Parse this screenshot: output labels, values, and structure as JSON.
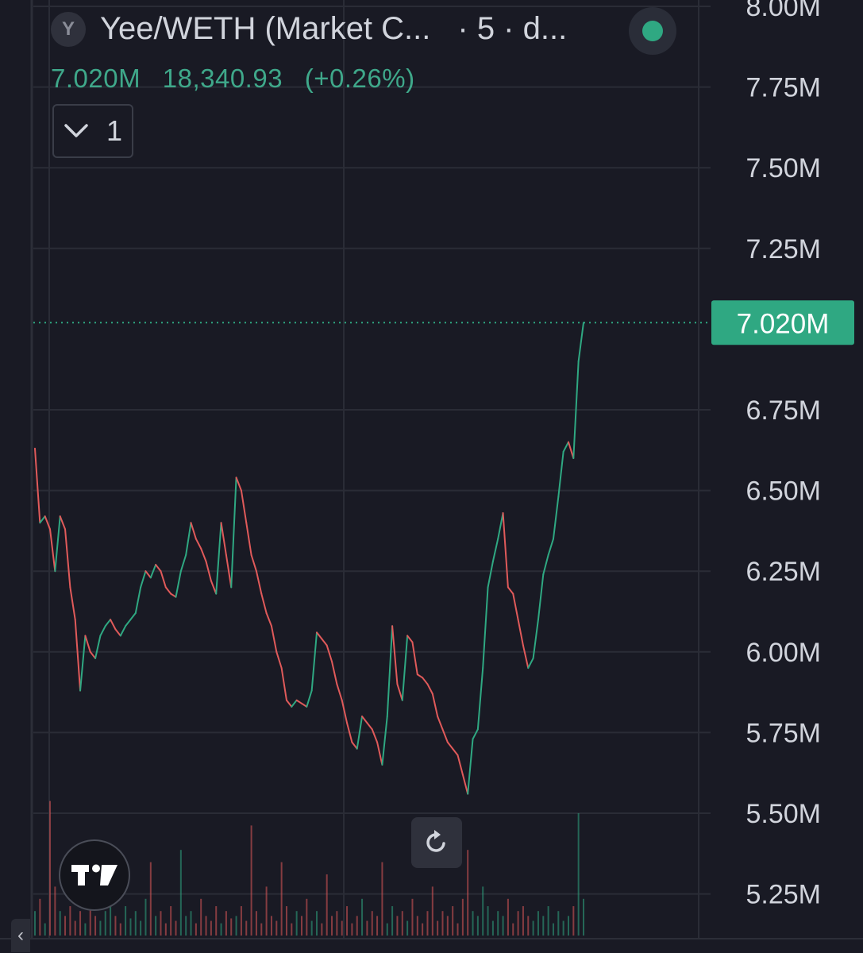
{
  "legend": {
    "symbol_badge": "Y",
    "title": "Yee/WETH (Market C...",
    "interval": "· 5 · d...",
    "status_color": "#2fa882"
  },
  "values": {
    "last_value": "7.020M",
    "price": "18,340.93",
    "change": "(+0.26%)"
  },
  "indicators_toggle": {
    "icon": "chevron-down-icon",
    "count": "1"
  },
  "controls": {
    "reset_icon": "reset-icon",
    "logo": "tradingview-logo",
    "scroll_left_icon": "chevron-left-icon",
    "scroll_left_glyph": "‹"
  },
  "colors": {
    "background": "#191a24",
    "grid": "#2a2c36",
    "up": "#2fa882",
    "down": "#e05a5a",
    "last_price_label": "#2fa882",
    "axis_text": "#d1d4dc"
  },
  "chart_data": {
    "type": "line",
    "title": "Yee/WETH (Market C...",
    "ylim": [
      5150000,
      8050000
    ],
    "y_ticks": [
      {
        "value": 8000000,
        "label": "8.00M"
      },
      {
        "value": 7750000,
        "label": "7.75M"
      },
      {
        "value": 7500000,
        "label": "7.50M"
      },
      {
        "value": 7250000,
        "label": "7.25M"
      },
      {
        "value": 6750000,
        "label": "6.75M"
      },
      {
        "value": 6500000,
        "label": "6.50M"
      },
      {
        "value": 6250000,
        "label": "6.25M"
      },
      {
        "value": 6000000,
        "label": "6.00M"
      },
      {
        "value": 5750000,
        "label": "5.75M"
      },
      {
        "value": 5500000,
        "label": "5.50M"
      },
      {
        "value": 5250000,
        "label": "5.25M"
      }
    ],
    "last_price": {
      "value": 7020000,
      "label": "7.020M"
    },
    "grid": true,
    "series": [
      {
        "values": [
          6630000,
          6400000,
          6420000,
          6380000,
          6250000,
          6420000,
          6380000,
          6200000,
          6100000,
          5880000,
          6050000,
          6000000,
          5980000,
          6050000,
          6080000,
          6100000,
          6070000,
          6050000,
          6080000,
          6100000,
          6120000,
          6200000,
          6250000,
          6230000,
          6270000,
          6250000,
          6200000,
          6180000,
          6170000,
          6250000,
          6300000,
          6400000,
          6350000,
          6320000,
          6280000,
          6220000,
          6180000,
          6400000,
          6300000,
          6200000,
          6540000,
          6500000,
          6400000,
          6300000,
          6250000,
          6180000,
          6120000,
          6080000,
          6000000,
          5950000,
          5850000,
          5830000,
          5850000,
          5840000,
          5830000,
          5880000,
          6060000,
          6040000,
          6020000,
          5970000,
          5900000,
          5850000,
          5780000,
          5720000,
          5700000,
          5800000,
          5780000,
          5760000,
          5720000,
          5650000,
          5800000,
          6080000,
          5900000,
          5850000,
          6050000,
          6030000,
          5930000,
          5920000,
          5900000,
          5870000,
          5800000,
          5760000,
          5720000,
          5700000,
          5680000,
          5620000,
          5560000,
          5730000,
          5760000,
          5950000,
          6200000,
          6280000,
          6350000,
          6430000,
          6200000,
          6180000,
          6100000,
          6020000,
          5950000,
          5980000,
          6100000,
          6240000,
          6300000,
          6350000,
          6480000,
          6620000,
          6650000,
          6600000,
          6900000,
          7020000
        ]
      }
    ],
    "volume": [
      0.1,
      0.15,
      0.05,
      0.55,
      0.2,
      0.1,
      0.08,
      0.12,
      0.06,
      0.1,
      0.05,
      0.15,
      0.08,
      0.06,
      0.1,
      0.2,
      0.08,
      0.05,
      0.12,
      0.07,
      0.1,
      0.06,
      0.15,
      0.3,
      0.08,
      0.1,
      0.05,
      0.12,
      0.06,
      0.35,
      0.08,
      0.1,
      0.05,
      0.15,
      0.08,
      0.06,
      0.12,
      0.05,
      0.1,
      0.07,
      0.08,
      0.12,
      0.06,
      0.45,
      0.1,
      0.05,
      0.2,
      0.08,
      0.06,
      0.3,
      0.12,
      0.05,
      0.1,
      0.08,
      0.15,
      0.06,
      0.1,
      0.05,
      0.25,
      0.08,
      0.1,
      0.06,
      0.12,
      0.05,
      0.08,
      0.15,
      0.06,
      0.1,
      0.08,
      0.3,
      0.05,
      0.12,
      0.08,
      0.1,
      0.06,
      0.15,
      0.08,
      0.05,
      0.1,
      0.2,
      0.06,
      0.1,
      0.08,
      0.12,
      0.05,
      0.15,
      0.35,
      0.1,
      0.08,
      0.2,
      0.12,
      0.06,
      0.1,
      0.08,
      0.15,
      0.05,
      0.1,
      0.12,
      0.08,
      0.06,
      0.1,
      0.08,
      0.12,
      0.05,
      0.1,
      0.06,
      0.08,
      0.12,
      0.5,
      0.15
    ]
  }
}
